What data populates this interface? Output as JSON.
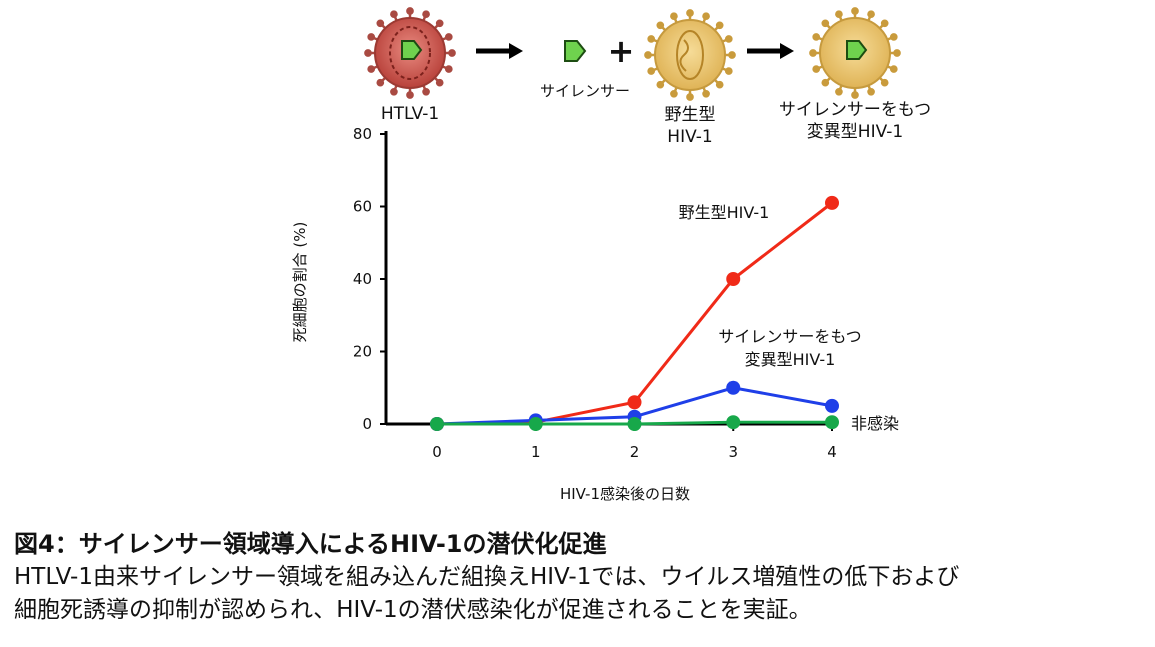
{
  "diagram": {
    "htlv_label": "HTLV-1",
    "silencer_label": "サイレンサー",
    "plus_sign": "+",
    "wild_label": [
      "野生型",
      "HIV-1"
    ],
    "mutant_label": [
      "サイレンサーをもつ",
      "変異型HIV-1"
    ]
  },
  "chart_data": {
    "type": "line",
    "x": [
      0,
      1,
      2,
      3,
      4
    ],
    "xticks": [
      "0",
      "1",
      "2",
      "3",
      "4"
    ],
    "yticks": [
      "0",
      "20",
      "40",
      "60",
      "80"
    ],
    "xlim": [
      0,
      4
    ],
    "ylim": [
      0,
      80
    ],
    "xlabel": "HIV-1感染後の日数",
    "ylabel": "死細胞の割合 (%)",
    "grid": false,
    "series": [
      {
        "name": "野生型HIV-1",
        "color": "#f02a18",
        "values": [
          0,
          0.5,
          6,
          40,
          61
        ]
      },
      {
        "name": "サイレンサーをもつ変異型HIV-1",
        "label_lines": [
          "サイレンサーをもつ",
          "変異型HIV-1"
        ],
        "color": "#1f3fe8",
        "values": [
          0,
          1,
          2,
          10,
          5
        ]
      },
      {
        "name": "非感染",
        "color": "#17a84a",
        "values": [
          0,
          0,
          0,
          0.5,
          0.5
        ]
      }
    ]
  },
  "caption": {
    "title": "図4：サイレンサー領域導入によるHIV-1の潜伏化促進",
    "body": [
      "HTLV-1由来サイレンサー領域を組み込んだ組換えHIV-1では、ウイルス増殖性の低下および",
      "細胞死誘導の抑制が認められ、HIV-1の潜伏感染化が促進されることを実証。"
    ]
  }
}
